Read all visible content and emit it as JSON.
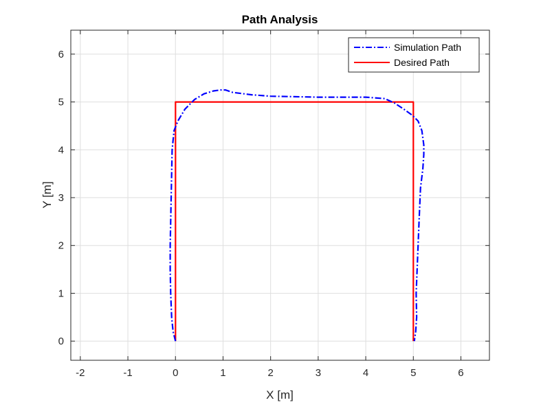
{
  "chart_data": {
    "type": "line",
    "title": "Path Analysis",
    "xlabel": "X [m]",
    "ylabel": "Y [m]",
    "xlim": [
      -2.2,
      6.6
    ],
    "ylim": [
      -0.4,
      6.5
    ],
    "xticks": [
      -2,
      -1,
      0,
      1,
      2,
      3,
      4,
      5,
      6
    ],
    "yticks": [
      0,
      1,
      2,
      3,
      4,
      5,
      6
    ],
    "xtick_labels": [
      "-2",
      "-1",
      "0",
      "1",
      "2",
      "3",
      "4",
      "5",
      "6"
    ],
    "ytick_labels": [
      "0",
      "1",
      "2",
      "3",
      "4",
      "5",
      "6"
    ],
    "grid": true,
    "legend_position": "top-right",
    "series": [
      {
        "name": "Simulation Path",
        "color": "#0000ff",
        "style": "dash-dot",
        "x": [
          0.0,
          -0.05,
          -0.08,
          -0.1,
          -0.11,
          -0.11,
          -0.1,
          -0.09,
          -0.08,
          -0.07,
          -0.03,
          0.05,
          0.2,
          0.4,
          0.6,
          0.8,
          0.95,
          1.05,
          1.2,
          1.6,
          2.0,
          2.5,
          3.0,
          3.5,
          4.0,
          4.4,
          4.6,
          4.8,
          4.98,
          5.1,
          5.18,
          5.22,
          5.22,
          5.2,
          5.15,
          5.12,
          5.1,
          5.08,
          5.06,
          5.07,
          5.05,
          5.02
        ],
        "y": [
          0.0,
          0.2,
          0.5,
          1.0,
          1.5,
          2.0,
          2.5,
          3.0,
          3.5,
          4.0,
          4.4,
          4.6,
          4.85,
          5.05,
          5.17,
          5.23,
          5.25,
          5.25,
          5.2,
          5.15,
          5.12,
          5.11,
          5.1,
          5.1,
          5.1,
          5.07,
          4.98,
          4.85,
          4.72,
          4.6,
          4.4,
          4.1,
          3.9,
          3.6,
          3.2,
          2.5,
          2.0,
          1.5,
          1.0,
          0.5,
          0.2,
          0.0
        ]
      },
      {
        "name": "Desired Path",
        "color": "#ff0000",
        "style": "solid",
        "x": [
          0,
          0,
          5,
          5
        ],
        "y": [
          0,
          5,
          5,
          0
        ]
      }
    ]
  }
}
